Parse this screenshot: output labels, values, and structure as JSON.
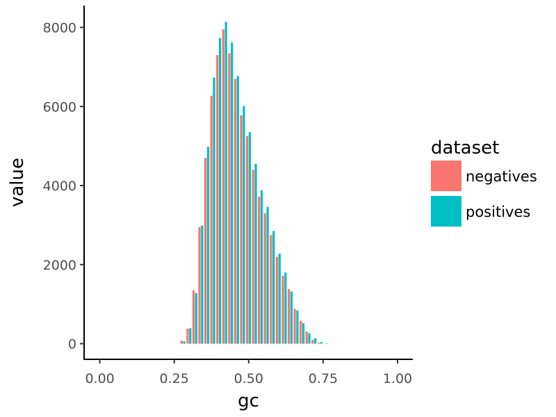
{
  "chart_data": {
    "type": "bar",
    "title": "",
    "xlabel": "gc",
    "ylabel": "value",
    "xlim": [
      -0.05,
      1.05
    ],
    "ylim": [
      -400,
      8550
    ],
    "x_ticks": [
      "0.00",
      "0.25",
      "0.50",
      "0.75",
      "1.00"
    ],
    "x_tick_values": [
      0.0,
      0.25,
      0.5,
      0.75,
      1.0
    ],
    "y_ticks": [
      "0",
      "2000",
      "4000",
      "6000",
      "8000"
    ],
    "y_tick_values": [
      0,
      2000,
      4000,
      6000,
      8000
    ],
    "grid": false,
    "legend": {
      "title": "dataset",
      "position": "right"
    },
    "x": [
      0.28,
      0.3,
      0.32,
      0.34,
      0.36,
      0.38,
      0.4,
      0.42,
      0.44,
      0.46,
      0.48,
      0.5,
      0.52,
      0.54,
      0.56,
      0.58,
      0.6,
      0.62,
      0.64,
      0.66,
      0.68,
      0.7,
      0.72,
      0.74,
      0.76
    ],
    "series": [
      {
        "name": "negatives",
        "color": "#F8766D",
        "values": [
          80,
          380,
          1350,
          2950,
          4700,
          6270,
          7300,
          7950,
          7350,
          6700,
          5780,
          5250,
          4400,
          3720,
          3300,
          2750,
          2200,
          1720,
          1380,
          880,
          580,
          310,
          100,
          20,
          0
        ]
      },
      {
        "name": "positives",
        "color": "#00BFC4",
        "values": [
          60,
          390,
          1280,
          2990,
          4980,
          6730,
          7730,
          8140,
          7620,
          6770,
          6010,
          5350,
          4550,
          3880,
          3460,
          2850,
          2280,
          1800,
          1320,
          840,
          520,
          260,
          140,
          40,
          10
        ]
      }
    ]
  }
}
